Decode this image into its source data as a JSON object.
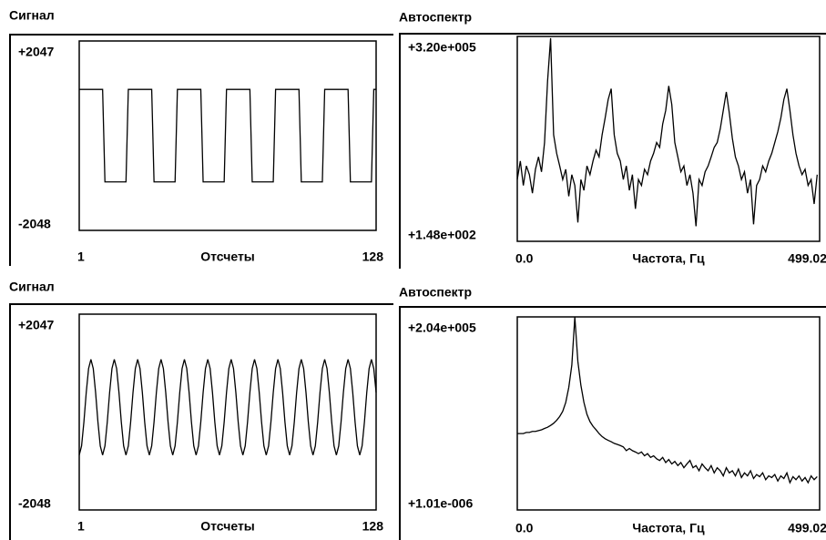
{
  "chart_data": [
    {
      "type": "line",
      "title": "Сигнал",
      "x_label": "Отсчеты",
      "color": "#000000",
      "xlim": [
        1,
        128
      ],
      "xticks": [
        1,
        128
      ],
      "ylim": [
        -2048,
        2047
      ],
      "yticks": [
        {
          "value": 2047,
          "label": "+2047"
        },
        -2048
      ],
      "x": [
        1,
        2,
        3,
        4,
        5,
        6,
        7,
        8,
        9,
        10,
        11,
        12,
        13,
        14,
        15,
        16,
        17,
        18,
        19,
        20,
        21,
        22,
        23,
        24,
        25,
        26,
        27,
        28,
        29,
        30,
        31,
        32,
        33,
        34,
        35,
        36,
        37,
        38,
        39,
        40,
        41,
        42,
        43,
        44,
        45,
        46,
        47,
        48,
        49,
        50,
        51,
        52,
        53,
        54,
        55,
        56,
        57,
        58,
        59,
        60,
        61,
        62,
        63,
        64,
        65,
        66,
        67,
        68,
        69,
        70,
        71,
        72,
        73,
        74,
        75,
        76,
        77,
        78,
        79,
        80,
        81,
        82,
        83,
        84,
        85,
        86,
        87,
        88,
        89,
        90,
        91,
        92,
        93,
        94,
        95,
        96,
        97,
        98,
        99,
        100,
        101,
        102,
        103,
        104,
        105,
        106,
        107,
        108,
        109,
        110,
        111,
        112,
        113,
        114,
        115,
        116,
        117,
        118,
        119,
        120,
        121,
        122,
        123,
        124,
        125,
        126,
        127,
        128
      ],
      "values": [
        1000,
        1000,
        1000,
        1000,
        1000,
        1000,
        1000,
        1000,
        1000,
        1000,
        1000,
        -1000,
        -1000,
        -1000,
        -1000,
        -1000,
        -1000,
        -1000,
        -1000,
        -1000,
        -1000,
        1000,
        1000,
        1000,
        1000,
        1000,
        1000,
        1000,
        1000,
        1000,
        1000,
        1000,
        -1000,
        -1000,
        -1000,
        -1000,
        -1000,
        -1000,
        -1000,
        -1000,
        -1000,
        -1000,
        1000,
        1000,
        1000,
        1000,
        1000,
        1000,
        1000,
        1000,
        1000,
        1000,
        1000,
        -1000,
        -1000,
        -1000,
        -1000,
        -1000,
        -1000,
        -1000,
        -1000,
        -1000,
        -1000,
        1000,
        1000,
        1000,
        1000,
        1000,
        1000,
        1000,
        1000,
        1000,
        1000,
        1000,
        -1000,
        -1000,
        -1000,
        -1000,
        -1000,
        -1000,
        -1000,
        -1000,
        -1000,
        -1000,
        1000,
        1000,
        1000,
        1000,
        1000,
        1000,
        1000,
        1000,
        1000,
        1000,
        1000,
        -1000,
        -1000,
        -1000,
        -1000,
        -1000,
        -1000,
        -1000,
        -1000,
        -1000,
        -1000,
        1000,
        1000,
        1000,
        1000,
        1000,
        1000,
        1000,
        1000,
        1000,
        1000,
        1000,
        -1000,
        -1000,
        -1000,
        -1000,
        -1000,
        -1000,
        -1000,
        -1000,
        -1000,
        -1000,
        1000,
        1000
      ]
    },
    {
      "type": "line",
      "title": "Автоспектр",
      "x_label": "Частота, Гц",
      "color": "#000000",
      "log_y": true,
      "xlim": [
        0,
        499.02
      ],
      "xticks": [
        {
          "value": 0,
          "label": "0.0"
        },
        499.02
      ],
      "ylim": [
        148,
        320000
      ],
      "yticks": [
        {
          "value": 320000,
          "label": "+3.20e+005"
        },
        {
          "value": 148,
          "label": "+1.48e+002"
        }
      ],
      "x": [
        0,
        5,
        10,
        15,
        20,
        25,
        30,
        35,
        40,
        45,
        50,
        55,
        60,
        65,
        70,
        75,
        80,
        85,
        90,
        95,
        100,
        105,
        110,
        115,
        120,
        125,
        130,
        135,
        140,
        145,
        150,
        155,
        160,
        165,
        170,
        175,
        180,
        185,
        190,
        195,
        200,
        205,
        210,
        215,
        220,
        225,
        230,
        235,
        240,
        245,
        250,
        255,
        260,
        265,
        270,
        275,
        280,
        285,
        290,
        295,
        300,
        305,
        310,
        315,
        320,
        325,
        330,
        335,
        340,
        345,
        350,
        355,
        360,
        365,
        370,
        375,
        380,
        385,
        390,
        395,
        400,
        405,
        410,
        415,
        420,
        425,
        430,
        435,
        440,
        445,
        450,
        455,
        460,
        465,
        470,
        475,
        480,
        485,
        490,
        495
      ],
      "values": [
        1500,
        3000,
        1200,
        2500,
        1800,
        900,
        2200,
        3500,
        2000,
        6000,
        60000,
        300000,
        8000,
        4000,
        2500,
        1500,
        2200,
        800,
        1800,
        1200,
        300,
        1500,
        1000,
        2500,
        1800,
        3000,
        4500,
        3500,
        8000,
        15000,
        30000,
        45000,
        8000,
        4000,
        3000,
        1500,
        2500,
        1000,
        1800,
        500,
        1500,
        1200,
        2200,
        1800,
        3000,
        4000,
        6000,
        5000,
        12000,
        20000,
        50000,
        25000,
        6000,
        3500,
        2000,
        2500,
        1200,
        1800,
        900,
        260,
        1500,
        1200,
        2000,
        2500,
        3500,
        5000,
        6000,
        10000,
        20000,
        40000,
        18000,
        7000,
        3500,
        2500,
        1500,
        2000,
        900,
        1500,
        280,
        1200,
        1500,
        2500,
        2000,
        3000,
        4000,
        6000,
        9000,
        15000,
        30000,
        45000,
        20000,
        8000,
        4000,
        2500,
        1800,
        2200,
        1200,
        1500,
        600,
        1800
      ]
    },
    {
      "type": "line",
      "title": "Сигнал",
      "x_label": "Отсчеты",
      "color": "#000000",
      "xlim": [
        1,
        128
      ],
      "xticks": [
        1,
        128
      ],
      "ylim": [
        -2048,
        2047
      ],
      "yticks": [
        {
          "value": 2047,
          "label": "+2047"
        },
        -2048
      ],
      "x": [
        1,
        2,
        3,
        4,
        5,
        6,
        7,
        8,
        9,
        10,
        11,
        12,
        13,
        14,
        15,
        16,
        17,
        18,
        19,
        20,
        21,
        22,
        23,
        24,
        25,
        26,
        27,
        28,
        29,
        30,
        31,
        32,
        33,
        34,
        35,
        36,
        37,
        38,
        39,
        40,
        41,
        42,
        43,
        44,
        45,
        46,
        47,
        48,
        49,
        50,
        51,
        52,
        53,
        54,
        55,
        56,
        57,
        58,
        59,
        60,
        61,
        62,
        63,
        64,
        65,
        66,
        67,
        68,
        69,
        70,
        71,
        72,
        73,
        74,
        75,
        76,
        77,
        78,
        79,
        80,
        81,
        82,
        83,
        84,
        85,
        86,
        87,
        88,
        89,
        90,
        91,
        92,
        93,
        94,
        95,
        96,
        97,
        98,
        99,
        100,
        101,
        102,
        103,
        104,
        105,
        106,
        107,
        108,
        109,
        110,
        111,
        112,
        113,
        114,
        115,
        116,
        117,
        118,
        119,
        120,
        121,
        122,
        123,
        124,
        125,
        126,
        127,
        128
      ],
      "values": [
        -900,
        -709,
        -209,
        409,
        909,
        1100,
        909,
        409,
        -209,
        -709,
        -900,
        -709,
        -209,
        409,
        909,
        1100,
        909,
        409,
        -209,
        -709,
        -900,
        -709,
        -209,
        409,
        909,
        1100,
        909,
        409,
        -209,
        -709,
        -900,
        -709,
        -209,
        409,
        909,
        1100,
        909,
        409,
        -209,
        -709,
        -900,
        -709,
        -209,
        409,
        909,
        1100,
        909,
        409,
        -209,
        -709,
        -900,
        -709,
        -209,
        409,
        909,
        1100,
        909,
        409,
        -209,
        -709,
        -900,
        -709,
        -209,
        409,
        909,
        1100,
        909,
        409,
        -209,
        -709,
        -900,
        -709,
        -209,
        409,
        909,
        1100,
        909,
        409,
        -209,
        -709,
        -900,
        -709,
        -209,
        409,
        909,
        1100,
        909,
        409,
        -209,
        -709,
        -900,
        -709,
        -209,
        409,
        909,
        1100,
        909,
        409,
        -209,
        -709,
        -900,
        -709,
        -209,
        409,
        909,
        1100,
        909,
        409,
        -209,
        -709,
        -900,
        -709,
        -209,
        409,
        909,
        1100,
        909,
        409,
        -209,
        -709,
        -900,
        -709,
        -209,
        409,
        909,
        1100,
        909,
        409
      ]
    },
    {
      "type": "line",
      "title": "Автоспектр",
      "x_label": "Частота, Гц",
      "color": "#000000",
      "log_y": true,
      "xlim": [
        0,
        499.02
      ],
      "xticks": [
        {
          "value": 0,
          "label": "0.0"
        },
        499.02
      ],
      "ylim": [
        1.01e-06,
        204000
      ],
      "yticks": [
        {
          "value": 204000,
          "label": "+2.04e+005"
        },
        {
          "value": 1.01e-06,
          "label": "+1.01e-006"
        }
      ],
      "x": [
        0,
        5,
        10,
        15,
        20,
        25,
        30,
        35,
        40,
        45,
        50,
        55,
        60,
        65,
        70,
        75,
        80,
        85,
        90,
        95,
        100,
        105,
        110,
        115,
        120,
        125,
        130,
        135,
        140,
        145,
        150,
        155,
        160,
        165,
        170,
        175,
        180,
        185,
        190,
        195,
        200,
        205,
        210,
        215,
        220,
        225,
        230,
        235,
        240,
        245,
        250,
        255,
        260,
        265,
        270,
        275,
        280,
        285,
        290,
        295,
        300,
        305,
        310,
        315,
        320,
        325,
        330,
        335,
        340,
        345,
        350,
        355,
        360,
        365,
        370,
        375,
        380,
        385,
        390,
        395,
        400,
        405,
        410,
        415,
        420,
        425,
        430,
        435,
        440,
        445,
        450,
        455,
        460,
        465,
        470,
        475,
        480,
        485,
        490,
        495
      ],
      "values": [
        0.03,
        0.03,
        0.03,
        0.035,
        0.035,
        0.04,
        0.04,
        0.045,
        0.05,
        0.06,
        0.07,
        0.09,
        0.12,
        0.18,
        0.3,
        0.6,
        2,
        15,
        300,
        200000,
        500,
        20,
        2,
        0.4,
        0.15,
        0.08,
        0.05,
        0.03,
        0.02,
        0.015,
        0.012,
        0.01,
        0.008,
        0.007,
        0.006,
        0.005,
        0.003,
        0.004,
        0.003,
        0.0025,
        0.002,
        0.0025,
        0.0015,
        0.002,
        0.0012,
        0.0015,
        0.001,
        0.0008,
        0.0012,
        0.0006,
        0.0009,
        0.0005,
        0.0007,
        0.0004,
        0.0006,
        0.0003,
        0.0005,
        0.0008,
        0.0003,
        0.0004,
        0.0002,
        0.0005,
        0.0003,
        0.0002,
        0.0004,
        0.00015,
        0.0003,
        0.0002,
        0.0001,
        0.0003,
        0.00015,
        0.0002,
        0.0001,
        0.00025,
        8e-05,
        0.00015,
        0.0001,
        0.0002,
        7e-05,
        0.00012,
        9e-05,
        0.00015,
        6e-05,
        0.0001,
        8e-05,
        0.00012,
        5e-05,
        0.0001,
        7e-05,
        0.00015,
        4e-05,
        9e-05,
        6e-05,
        0.0001,
        5e-05,
        8e-05,
        4e-05,
        0.0001,
        6e-05,
        9e-05
      ]
    }
  ]
}
